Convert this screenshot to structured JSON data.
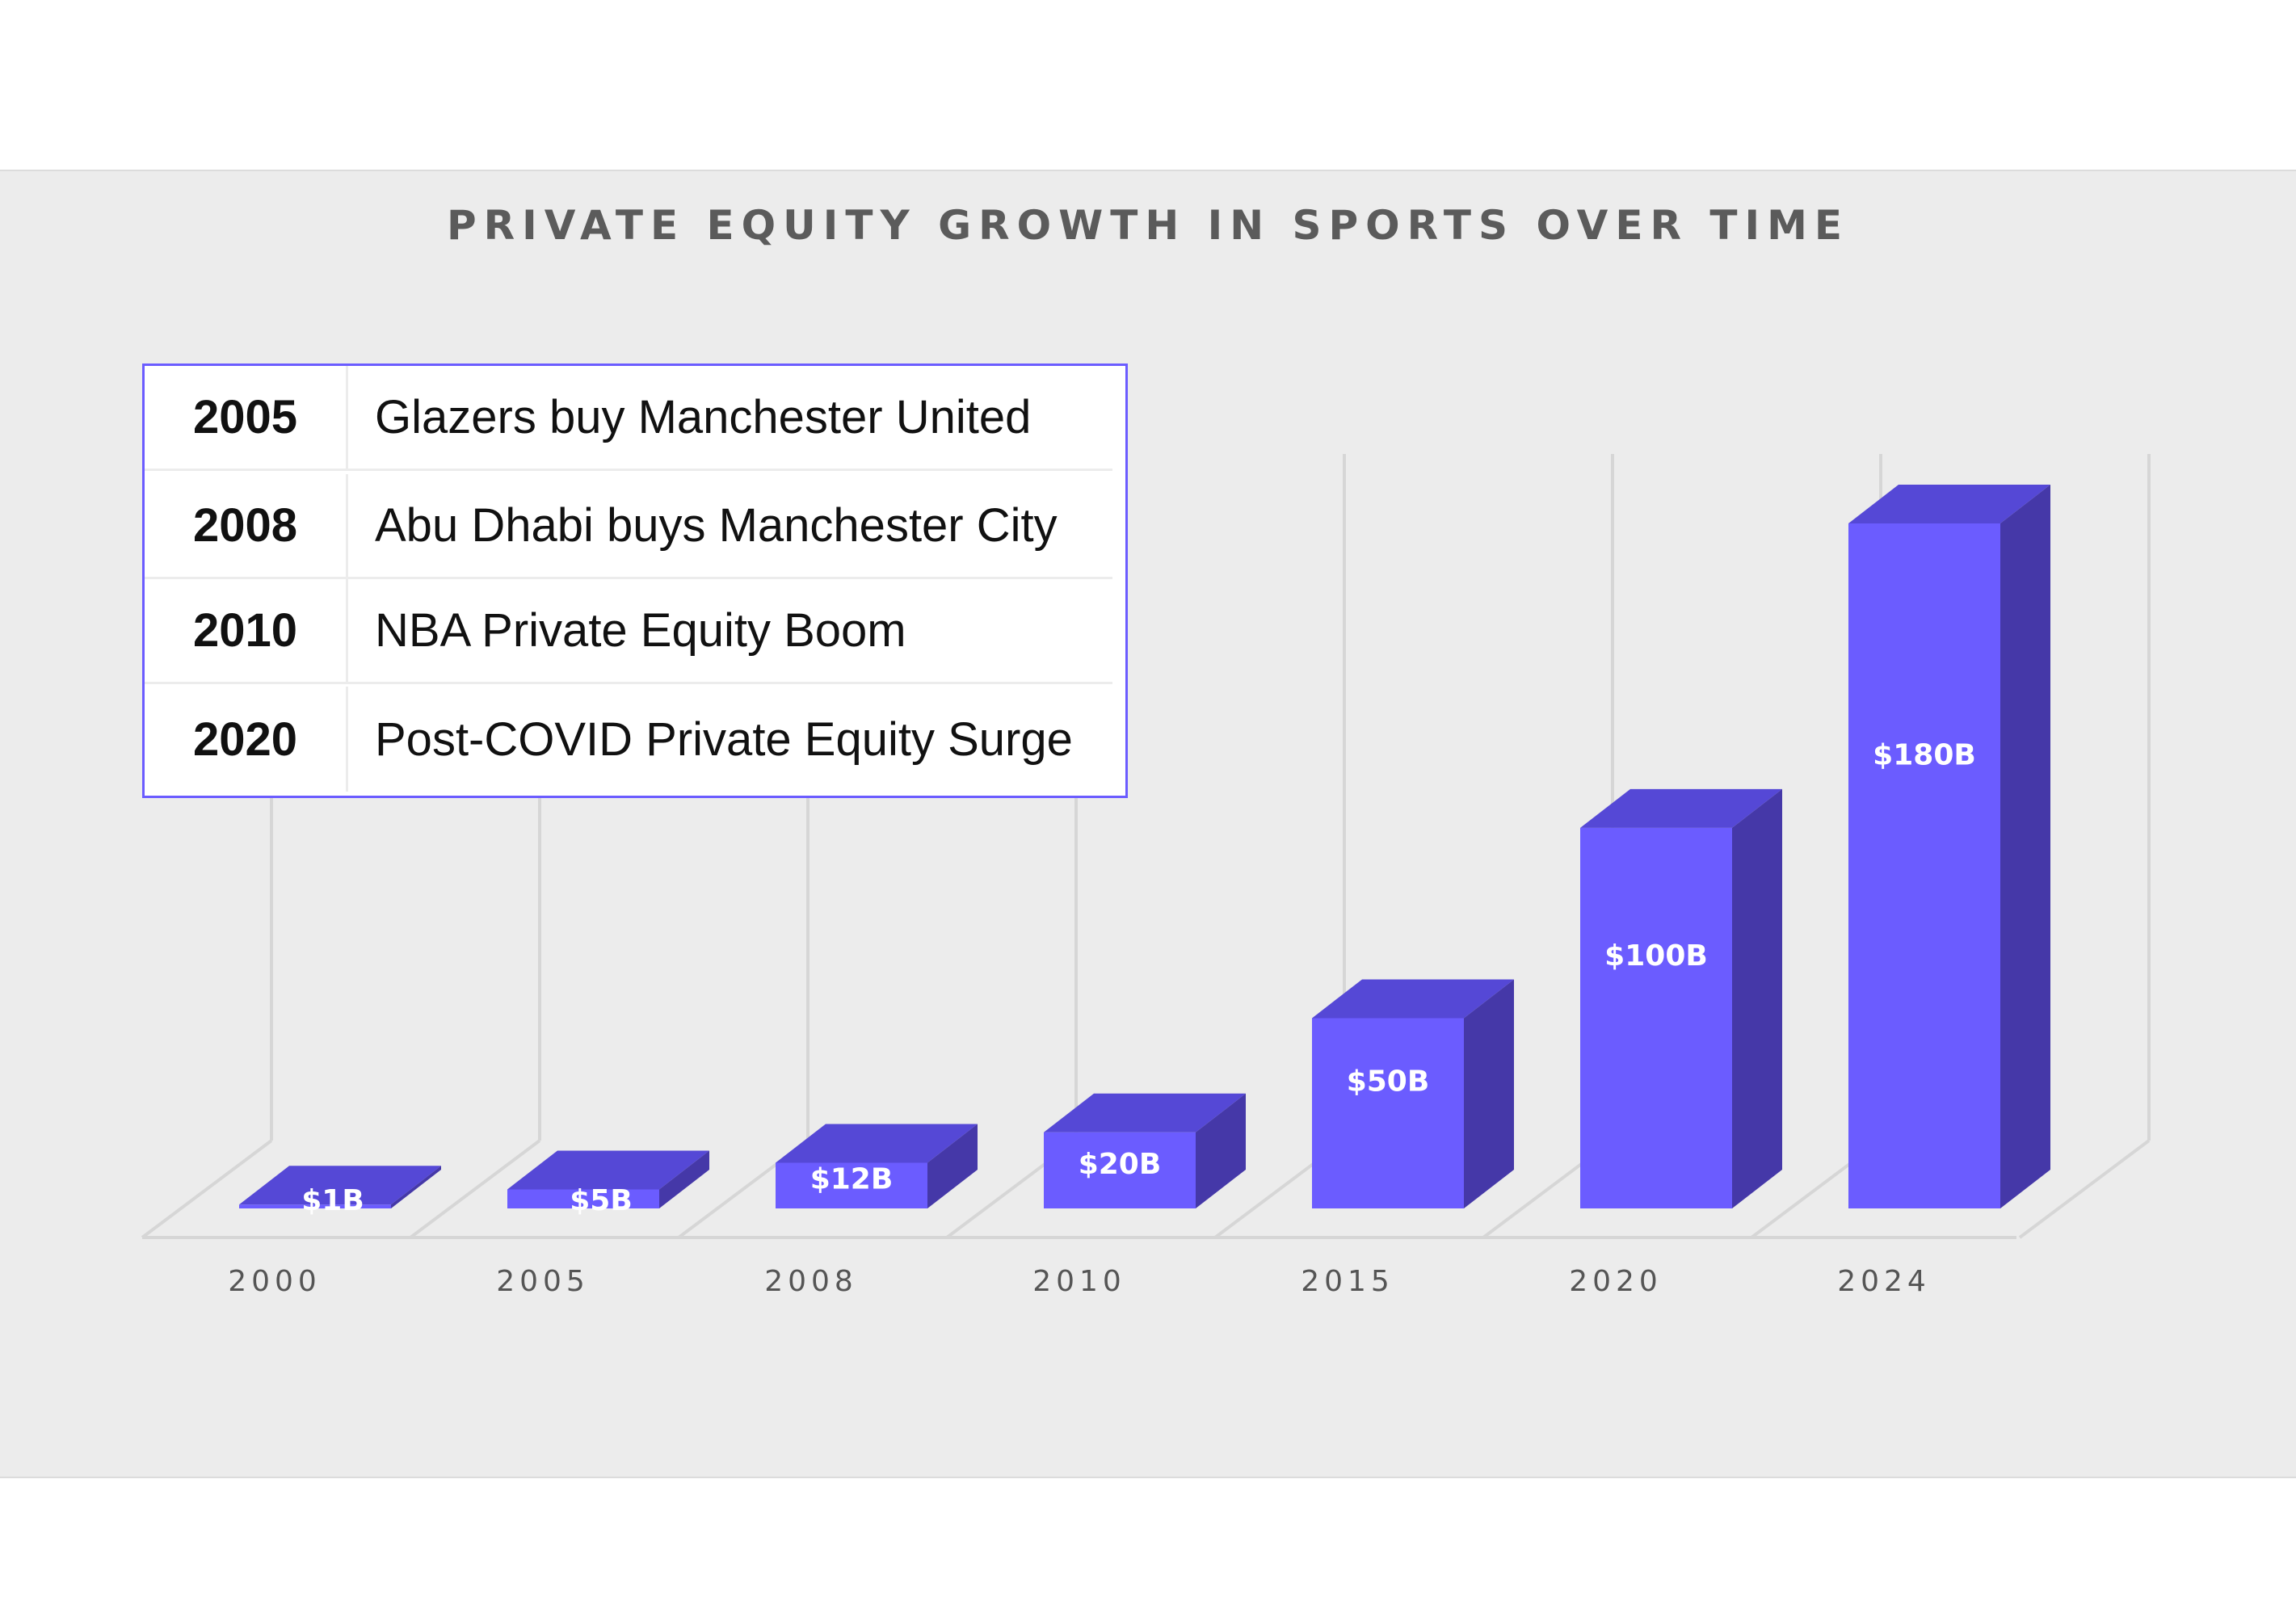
{
  "chart_data": {
    "type": "bar",
    "title": "PRIVATE EQUITY GROWTH IN SPORTS OVER TIME",
    "categories": [
      "2000",
      "2005",
      "2008",
      "2010",
      "2015",
      "2020",
      "2024"
    ],
    "values": [
      1,
      5,
      12,
      20,
      50,
      100,
      180
    ],
    "value_labels": [
      "$1B",
      "$5B",
      "$12B",
      "$20B",
      "$50B",
      "$100B",
      "$180B"
    ],
    "unit": "$B",
    "ylim": [
      0,
      180
    ],
    "grid": true,
    "three_d": true,
    "xlabel": "",
    "ylabel": ""
  },
  "events": [
    {
      "year": "2005",
      "text": "Glazers buy Manchester United"
    },
    {
      "year": "2008",
      "text": "Abu Dhabi buys Manchester City"
    },
    {
      "year": "2010",
      "text": "NBA Private Equity Boom"
    },
    {
      "year": "2020",
      "text": "Post-COVID Private Equity Surge"
    }
  ],
  "colors": {
    "bar_front": "#6b5cff",
    "bar_top": "#5548d6",
    "bar_side": "#4538a8",
    "table_border": "#6b5cff",
    "title": "#5b5b5b",
    "background": "#ececec",
    "grid": "#d6d6d6"
  }
}
